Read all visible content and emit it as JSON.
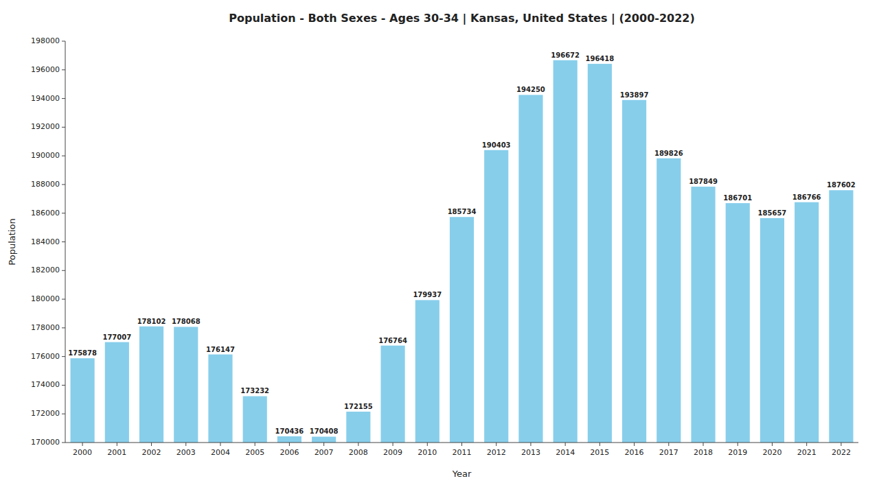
{
  "chart_data": {
    "type": "bar",
    "title": "Population - Both Sexes - Ages 30-34 | Kansas, United States |  (2000-2022)",
    "xlabel": "Year",
    "ylabel": "Population",
    "categories": [
      "2000",
      "2001",
      "2002",
      "2003",
      "2004",
      "2005",
      "2006",
      "2007",
      "2008",
      "2009",
      "2010",
      "2011",
      "2012",
      "2013",
      "2014",
      "2015",
      "2016",
      "2017",
      "2018",
      "2019",
      "2020",
      "2021",
      "2022"
    ],
    "values": [
      175878,
      177007,
      178102,
      178068,
      176147,
      173232,
      170436,
      170408,
      172155,
      176764,
      179937,
      185734,
      190403,
      194250,
      196672,
      196418,
      193897,
      189826,
      187849,
      186701,
      185657,
      186766,
      187602
    ],
    "color": "#87CEEB",
    "ylim": [
      170000,
      198000
    ],
    "yticks": [
      170000,
      172000,
      174000,
      176000,
      178000,
      180000,
      182000,
      184000,
      186000,
      188000,
      190000,
      192000,
      194000,
      196000,
      198000
    ],
    "grid": false,
    "data_labels": true
  }
}
